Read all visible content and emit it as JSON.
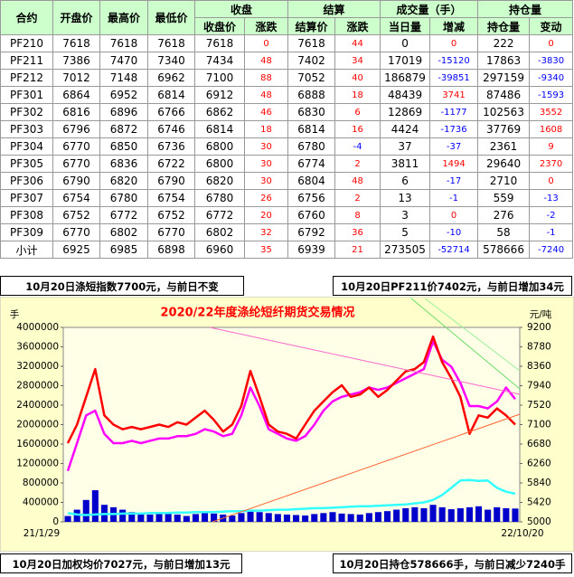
{
  "table": {
    "columns": [
      "合约",
      "开盘价",
      "最高价",
      "最低价"
    ],
    "groups": [
      {
        "title": "收盘",
        "columns": [
          "收盘价",
          "涨跌"
        ]
      },
      {
        "title": "结算",
        "columns": [
          "结算价",
          "涨跌"
        ]
      },
      {
        "title": "成交量（手）",
        "columns": [
          "当日量",
          "增减"
        ]
      },
      {
        "title": "持仓量",
        "columns": [
          "持仓量",
          "变动"
        ]
      }
    ],
    "rows": [
      [
        "PF210",
        7618,
        7618,
        7618,
        7618,
        0,
        7618,
        44,
        0,
        0,
        222,
        0
      ],
      [
        "PF211",
        7386,
        7470,
        7340,
        7434,
        48,
        7402,
        34,
        17019,
        -15120,
        17863,
        -3830
      ],
      [
        "PF212",
        7012,
        7148,
        6962,
        7100,
        88,
        7052,
        40,
        186879,
        -39851,
        297159,
        -9340
      ],
      [
        "PF301",
        6864,
        6952,
        6814,
        6912,
        48,
        6888,
        18,
        48439,
        3741,
        87486,
        -1593
      ],
      [
        "PF302",
        6816,
        6896,
        6766,
        6862,
        46,
        6830,
        6,
        12869,
        -1177,
        102563,
        3552
      ],
      [
        "PF303",
        6796,
        6872,
        6746,
        6814,
        18,
        6814,
        16,
        4424,
        -1736,
        37769,
        1608
      ],
      [
        "PF304",
        6770,
        6850,
        6736,
        6800,
        30,
        6780,
        -4,
        37,
        -37,
        2361,
        9
      ],
      [
        "PF305",
        6770,
        6836,
        6722,
        6800,
        30,
        6774,
        2,
        3811,
        1494,
        29640,
        2370
      ],
      [
        "PF306",
        6790,
        6820,
        6790,
        6820,
        30,
        6804,
        48,
        6,
        -17,
        2710,
        0
      ],
      [
        "PF307",
        6754,
        6780,
        6754,
        6780,
        26,
        6756,
        2,
        13,
        -1,
        559,
        -13
      ],
      [
        "PF308",
        6752,
        6772,
        6752,
        6772,
        20,
        6760,
        8,
        3,
        0,
        276,
        -2
      ],
      [
        "PF309",
        6770,
        6802,
        6770,
        6802,
        32,
        6792,
        36,
        5,
        -10,
        58,
        -1
      ],
      [
        "小计",
        6925,
        6985,
        6898,
        6960,
        35,
        6939,
        21,
        273505,
        -52714,
        578666,
        -7240
      ]
    ]
  },
  "banners": {
    "top_left": "10月20日涤短指数7700元，与前日不变",
    "top_right": "10月20日PF211价7402元，与前日增加34元",
    "bottom_left": "10月20日加权均价7027元，与前日增加13元",
    "bottom_right": "10月20日持仓578666手，与前日减少7240手"
  },
  "chart_data": {
    "type": "line",
    "title": "2020/22年度涤纶短纤期货交易情况",
    "y_label": "手",
    "y2_label": "元/吨",
    "categories": [
      "21/1/29",
      null,
      null,
      null,
      null,
      null,
      null,
      null,
      null,
      null,
      null,
      null,
      null,
      null,
      null,
      null,
      null,
      null,
      null,
      null,
      null,
      null,
      null,
      null,
      null,
      null,
      null,
      null,
      null,
      null,
      null,
      null,
      null,
      null,
      null,
      null,
      null,
      null,
      null,
      null,
      null,
      null,
      null,
      null,
      null,
      null,
      null,
      null,
      null,
      "22/10/20"
    ],
    "ylim": [
      0,
      4000000
    ],
    "yticks": [
      0,
      400000,
      800000,
      1200000,
      1600000,
      2000000,
      2400000,
      2800000,
      3200000,
      3600000,
      4000000
    ],
    "y2lim": [
      5000,
      9200
    ],
    "y2ticks": [
      5000,
      5420,
      5840,
      6260,
      6680,
      7100,
      7520,
      7940,
      8360,
      8780,
      9200
    ],
    "series": [
      {
        "type": "bar",
        "axis": "y",
        "color": "#0000cc",
        "values": [
          120000,
          250000,
          450000,
          650000,
          350000,
          300000,
          250000,
          200000,
          180000,
          150000,
          200000,
          180000,
          150000,
          120000,
          160000,
          200000,
          170000,
          150000,
          130000,
          180000,
          220000,
          200000,
          180000,
          160000,
          150000,
          140000,
          130000,
          160000,
          180000,
          200000,
          170000,
          160000,
          150000,
          180000,
          200000,
          220000,
          250000,
          280000,
          300000,
          280000,
          350000,
          300000,
          260000,
          280000,
          300000,
          320000,
          250000,
          300000,
          280000,
          273505
        ]
      },
      {
        "type": "line",
        "axis": "y",
        "color": "#33ffff",
        "values": [
          180000,
          150000,
          140000,
          150000,
          160000,
          160000,
          170000,
          170000,
          170000,
          180000,
          180000,
          180000,
          190000,
          190000,
          200000,
          200000,
          200000,
          210000,
          220000,
          220000,
          230000,
          230000,
          240000,
          250000,
          250000,
          260000,
          270000,
          280000,
          280000,
          290000,
          300000,
          310000,
          320000,
          320000,
          330000,
          340000,
          350000,
          360000,
          380000,
          400000,
          450000,
          550000,
          700000,
          850000,
          860000,
          840000,
          850000,
          700000,
          620000,
          578666
        ]
      },
      {
        "type": "line",
        "axis": "y2",
        "color": "#ff00ff",
        "values": [
          6100,
          6700,
          7300,
          7400,
          6900,
          6700,
          6700,
          6750,
          6700,
          6750,
          6800,
          6800,
          6850,
          6850,
          6900,
          7000,
          6950,
          6850,
          6900,
          7300,
          7900,
          7500,
          7000,
          6900,
          6800,
          6750,
          6850,
          7100,
          7400,
          7600,
          7700,
          7750,
          7800,
          7900,
          7850,
          7900,
          8000,
          8100,
          8200,
          8300,
          8900,
          8500,
          8350,
          8000,
          7500,
          7500,
          7450,
          7600,
          7900,
          7650
        ]
      },
      {
        "type": "line",
        "axis": "y2",
        "color": "#ff0000",
        "values": [
          6700,
          7100,
          7700,
          8300,
          7300,
          7100,
          7000,
          7050,
          7000,
          7050,
          7100,
          7050,
          7150,
          7100,
          7250,
          7400,
          7200,
          6950,
          7100,
          7500,
          8260,
          7700,
          7100,
          6950,
          6900,
          6800,
          7100,
          7400,
          7600,
          7800,
          7950,
          7700,
          7750,
          7900,
          7700,
          7850,
          8050,
          8250,
          8300,
          8450,
          9000,
          8450,
          8100,
          7700,
          6900,
          7300,
          7250,
          7450,
          7300,
          7100
        ]
      }
    ]
  }
}
